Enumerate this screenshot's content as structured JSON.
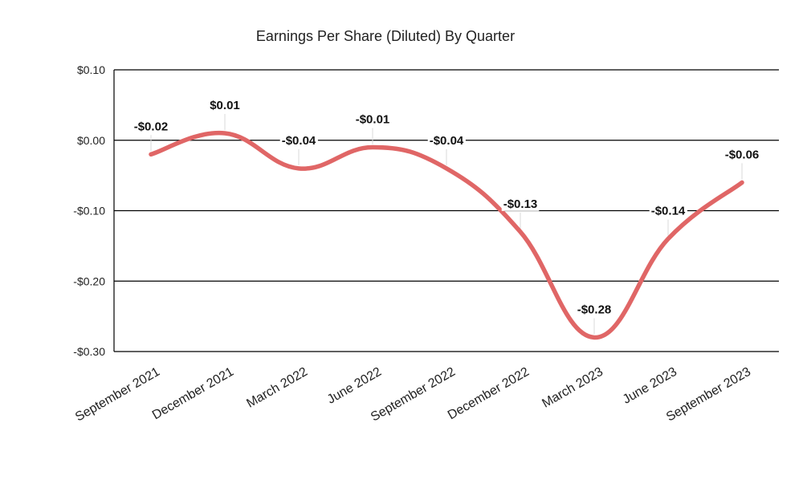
{
  "chart_data": {
    "type": "line",
    "title": "Earnings Per Share (Diluted) By Quarter",
    "xlabel": "",
    "ylabel": "",
    "categories": [
      "September 2021",
      "December 2021",
      "March 2022",
      "June 2022",
      "September 2022",
      "December 2022",
      "March 2023",
      "June 2023",
      "September 2023"
    ],
    "series": [
      {
        "values": [
          -0.02,
          0.01,
          -0.04,
          -0.01,
          -0.04,
          -0.13,
          -0.28,
          -0.14,
          -0.06
        ]
      }
    ],
    "data_labels": [
      "-$0.02",
      "$0.01",
      "-$0.04",
      "-$0.01",
      "-$0.04",
      "-$0.13",
      "-$0.28",
      "-$0.14",
      "-$0.06"
    ],
    "ylim": [
      -0.3,
      0.1
    ],
    "yticks": [
      0.1,
      0.0,
      -0.1,
      -0.2,
      -0.3
    ],
    "ytick_labels": [
      "$0.10",
      "$0.00",
      "-$0.10",
      "-$0.20",
      "-$0.30"
    ],
    "grid": true,
    "line_color": "#e06666",
    "smooth": true
  }
}
